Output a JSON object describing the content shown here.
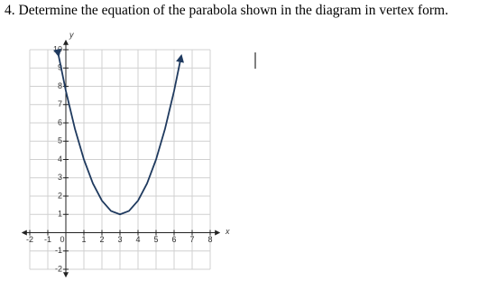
{
  "question": "4. Determine the equation of the parabola shown in the diagram in vertex form.",
  "chart_data": {
    "type": "line",
    "x_label": "x",
    "y_label": "y",
    "xlim": [
      -2,
      8
    ],
    "ylim": [
      -2,
      10
    ],
    "xticks": [
      -2,
      -1,
      0,
      1,
      2,
      3,
      4,
      5,
      6,
      7,
      8
    ],
    "yticks": [
      -2,
      -1,
      1,
      2,
      3,
      4,
      5,
      6,
      7,
      8,
      9,
      10
    ],
    "grid": true,
    "series": [
      {
        "color": "#1f3a5f",
        "x": [
          -0.4,
          0,
          0.5,
          1,
          1.5,
          2,
          2.5,
          3,
          3.5,
          4,
          4.5,
          5,
          5.5,
          6,
          6.4
        ],
        "values": [
          9.67,
          7.75,
          5.6875,
          4,
          2.6875,
          1.75,
          1.1875,
          1,
          1.1875,
          1.75,
          2.6875,
          4,
          5.6875,
          7.75,
          9.67
        ]
      }
    ]
  }
}
